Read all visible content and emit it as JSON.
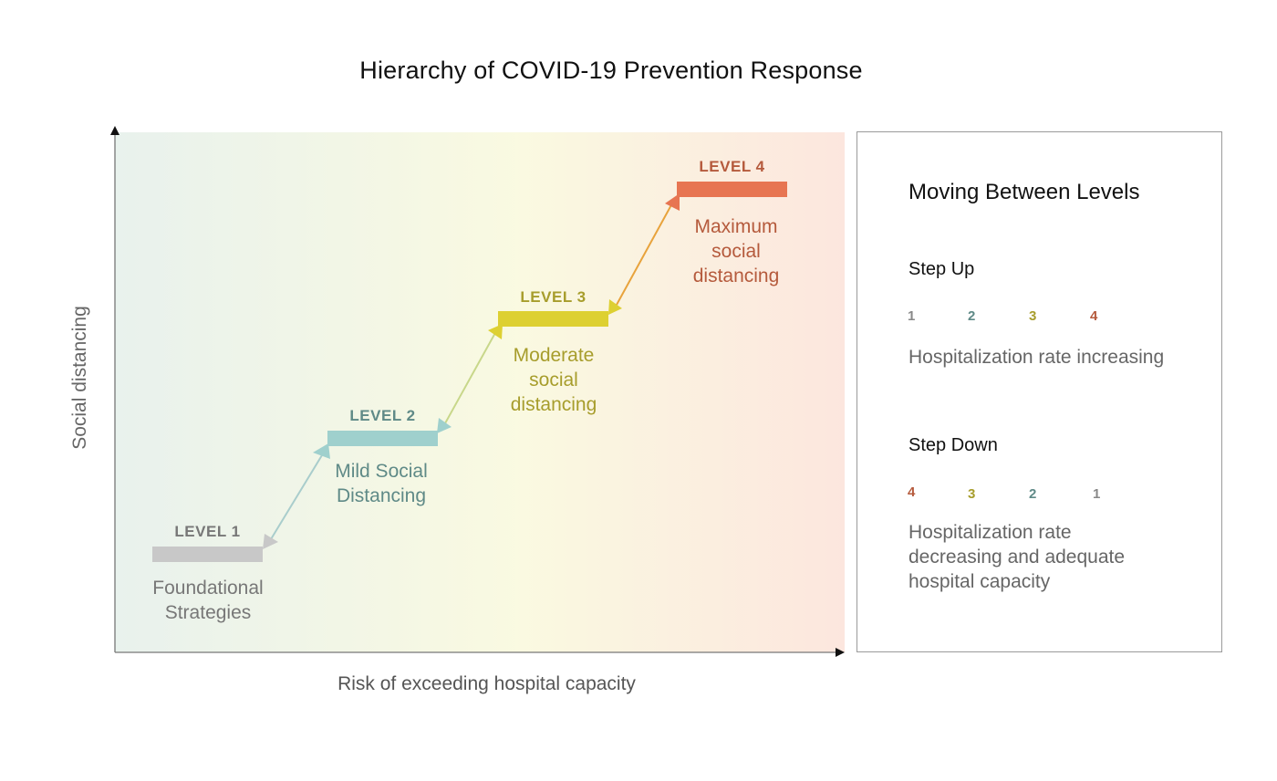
{
  "title": "Hierarchy of COVID-19 Prevention Response",
  "axes": {
    "y_label": "Social distancing",
    "x_label": "Risk of exceeding hospital capacity"
  },
  "levels": [
    {
      "label": "LEVEL 1",
      "desc_lines": [
        "Foundational",
        "Strategies"
      ],
      "color": "#c8c8c8",
      "text_color": "#777777"
    },
    {
      "label": "LEVEL 2",
      "desc_lines": [
        "Mild Social",
        "Distancing"
      ],
      "color": "#9fd0cd",
      "text_color": "#5f8a87"
    },
    {
      "label": "LEVEL 3",
      "desc_lines": [
        "Moderate",
        "social",
        "distancing"
      ],
      "color": "#ddd032",
      "text_color": "#a79d2c"
    },
    {
      "label": "LEVEL 4",
      "desc_lines": [
        "Maximum",
        "social",
        "distancing"
      ],
      "color": "#e77552",
      "text_color": "#b55a3c"
    }
  ],
  "panel": {
    "title": "Moving Between Levels",
    "step_up": {
      "title": "Step Up",
      "sequence": [
        "1",
        "2",
        "3",
        "4"
      ],
      "text_lines": [
        "Hospitalization rate increasing"
      ]
    },
    "step_down": {
      "title": "Step Down",
      "sequence": [
        "4",
        "3",
        "2",
        "1"
      ],
      "text_lines": [
        "Hospitalization rate",
        "decreasing and adequate",
        "hospital capacity"
      ]
    }
  }
}
